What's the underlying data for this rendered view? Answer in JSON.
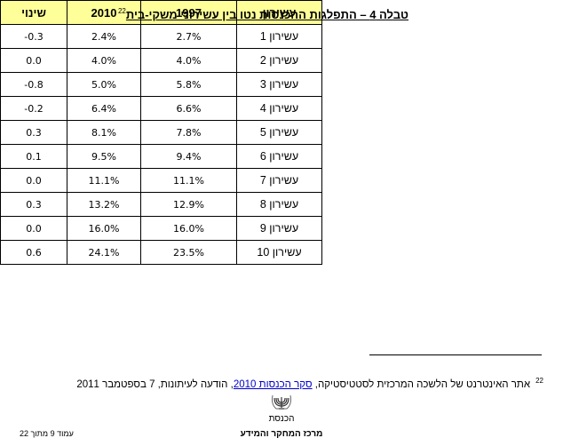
{
  "header": {
    "title": "טבלה 4 – התפלגות ההכנסות נטו בין עשירוני משקי-בית",
    "footnote_ref": "22"
  },
  "table": {
    "columns": [
      "עשירון",
      "1997",
      "2010",
      "שינוי"
    ],
    "rows": [
      [
        "עשירון 1",
        "2.7%",
        "2.4%",
        "-0.3"
      ],
      [
        "עשירון 2",
        "4.0%",
        "4.0%",
        "0.0"
      ],
      [
        "עשירון 3",
        "5.8%",
        "5.0%",
        "-0.8"
      ],
      [
        "עשירון 4",
        "6.6%",
        "6.4%",
        "-0.2"
      ],
      [
        "עשירון 5",
        "7.8%",
        "8.1%",
        "0.3"
      ],
      [
        "עשירון 6",
        "9.4%",
        "9.5%",
        "0.1"
      ],
      [
        "עשירון 7",
        "11.1%",
        "11.1%",
        "0.0"
      ],
      [
        "עשירון 8",
        "12.9%",
        "13.2%",
        "0.3"
      ],
      [
        "עשירון 9",
        "16.0%",
        "16.0%",
        "0.0"
      ],
      [
        "עשירון 10",
        "23.5%",
        "24.1%",
        "0.6"
      ]
    ]
  },
  "footnote": {
    "number": "22",
    "text_before": "אתר האינטרנט של הלשכה המרכזית לסטטיסטיקה, ",
    "link": "סקר הכנסות 2010",
    "text_after": ", הודעה לעיתונות, 7 בספטמבר 2011"
  },
  "footer": {
    "org": "הכנסת",
    "unit": "מרכז המחקר והמידע",
    "page": "עמוד 9 מתוך 22"
  }
}
